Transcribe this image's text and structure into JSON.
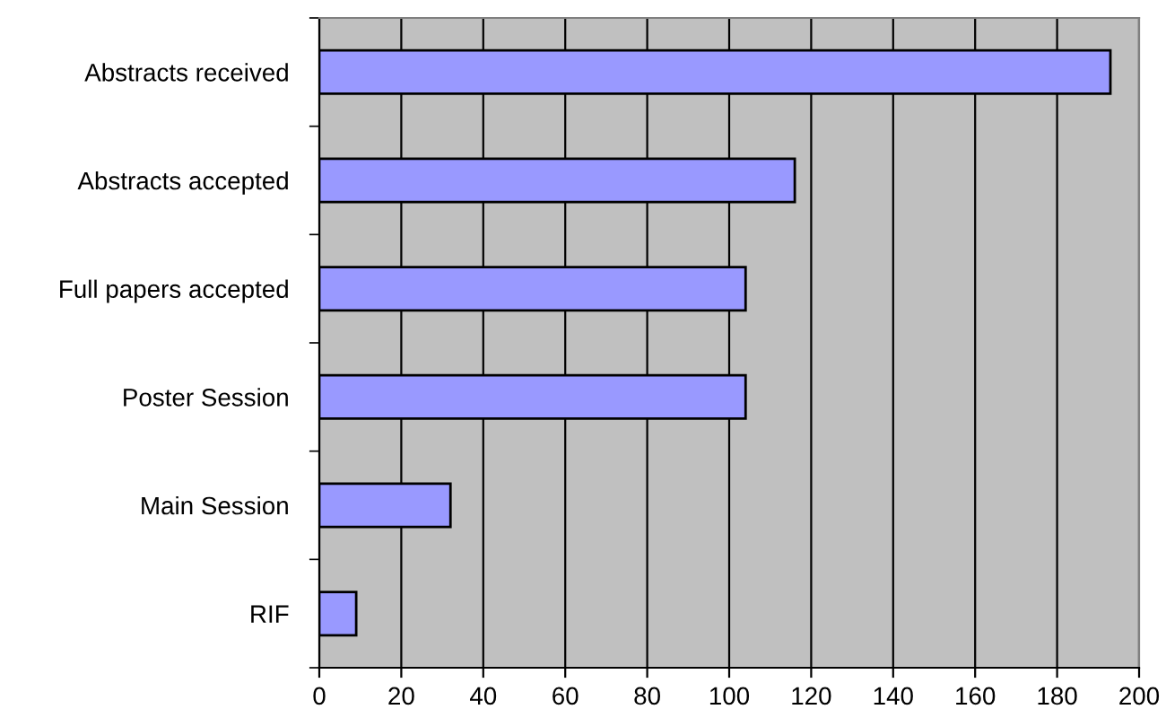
{
  "chart_data": {
    "type": "bar",
    "orientation": "horizontal",
    "categories": [
      "Abstracts received",
      "Abstracts accepted",
      "Full papers accepted",
      "Poster Session",
      "Main Session",
      "RIF"
    ],
    "values": [
      193,
      116,
      104,
      104,
      32,
      9
    ],
    "color": "#9999ff",
    "xlim": [
      0,
      200
    ],
    "xticks": [
      0,
      20,
      40,
      60,
      80,
      100,
      120,
      140,
      160,
      180,
      200
    ],
    "grid": "x"
  }
}
